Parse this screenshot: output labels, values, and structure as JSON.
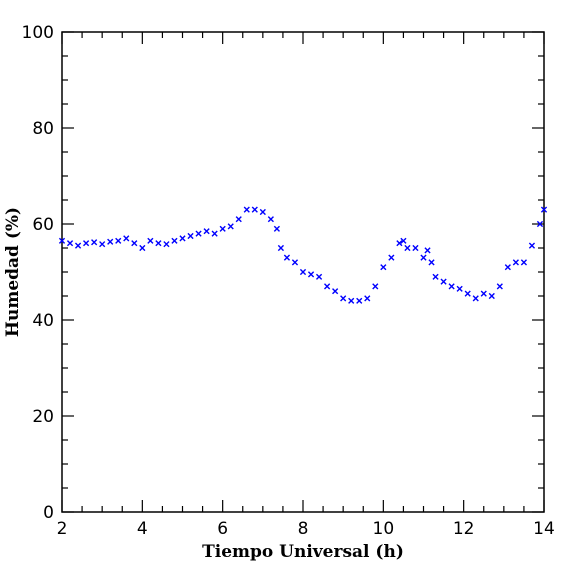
{
  "chart_data": {
    "type": "scatter",
    "xlabel": "Tiempo Universal (h)",
    "ylabel": "Humedad (%)",
    "xlim": [
      2,
      14
    ],
    "ylim": [
      0,
      100
    ],
    "x_ticks": [
      "2",
      "4",
      "6",
      "8",
      "10",
      "12",
      "14"
    ],
    "y_ticks": [
      "0",
      "20",
      "40",
      "60",
      "80",
      "100"
    ],
    "marker": "x",
    "color": "#0000ff",
    "grid": false,
    "series": [
      {
        "x": [
          2.0,
          2.2,
          2.4,
          2.6,
          2.8,
          3.0,
          3.2,
          3.4,
          3.6,
          3.8,
          4.0,
          4.2,
          4.4,
          4.6,
          4.8,
          5.0,
          5.2,
          5.4,
          5.6,
          5.8,
          6.0,
          6.2,
          6.4,
          6.6,
          6.8,
          7.0,
          7.2,
          7.35,
          7.45,
          7.6,
          7.8,
          8.0,
          8.2,
          8.4,
          8.6,
          8.8,
          9.0,
          9.2,
          9.4,
          9.6,
          9.8,
          10.0,
          10.2,
          10.4,
          10.5,
          10.6,
          10.8,
          11.0,
          11.1,
          11.2,
          11.3,
          11.5,
          11.7,
          11.9,
          12.1,
          12.3,
          12.5,
          12.7,
          12.9,
          13.1,
          13.3,
          13.5,
          13.7,
          13.9,
          14.0
        ],
        "y": [
          56.5,
          56.0,
          55.5,
          56.0,
          56.2,
          55.8,
          56.3,
          56.5,
          57.0,
          56.0,
          55.0,
          56.5,
          56.0,
          55.8,
          56.5,
          57.0,
          57.5,
          58.0,
          58.5,
          58.0,
          59.0,
          59.5,
          61.0,
          63.0,
          63.0,
          62.5,
          61.0,
          59.0,
          55.0,
          53.0,
          52.0,
          50.0,
          49.5,
          49.0,
          47.0,
          46.0,
          44.5,
          44.0,
          44.0,
          44.5,
          47.0,
          51.0,
          53.0,
          56.0,
          56.5,
          55.0,
          55.0,
          53.0,
          54.5,
          52.0,
          49.0,
          48.0,
          47.0,
          46.5,
          45.5,
          44.5,
          45.5,
          45.0,
          47.0,
          51.0,
          52.0,
          52.0,
          55.5,
          60.0,
          63.0
        ]
      }
    ]
  }
}
